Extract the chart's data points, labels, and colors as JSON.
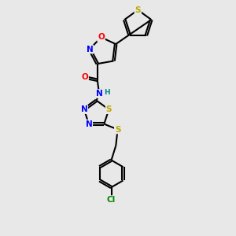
{
  "background_color": "#e8e8e8",
  "atom_colors": {
    "C": "#000000",
    "N": "#0000FF",
    "O": "#FF0000",
    "S": "#BBAA00",
    "Cl": "#008800",
    "H": "#008888"
  },
  "bond_color": "#000000",
  "bond_width": 1.5,
  "doffset": 0.055
}
